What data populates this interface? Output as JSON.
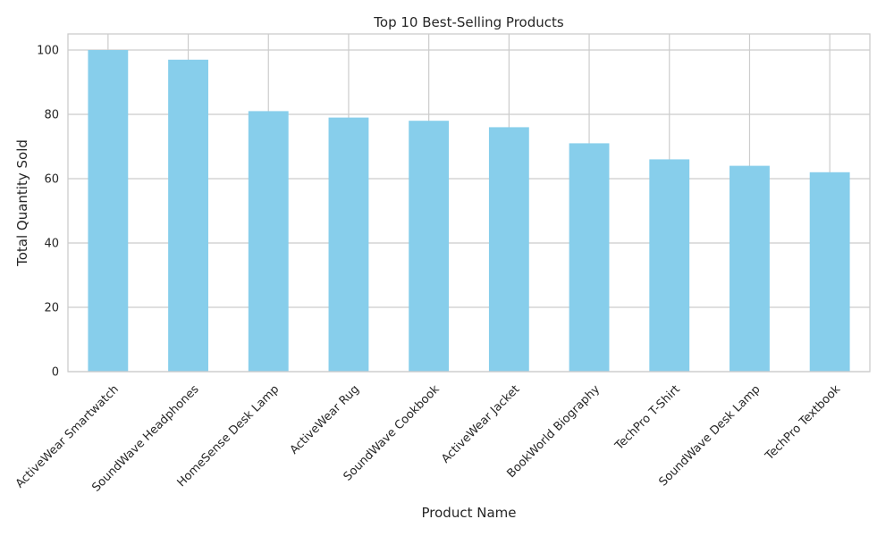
{
  "chart_data": {
    "type": "bar",
    "title": "Top 10 Best-Selling Products",
    "xlabel": "Product Name",
    "ylabel": "Total Quantity Sold",
    "categories": [
      "ActiveWear Smartwatch",
      "SoundWave Headphones",
      "HomeSense Desk Lamp",
      "ActiveWear Rug",
      "SoundWave Cookbook",
      "ActiveWear Jacket",
      "BookWorld Biography",
      "TechPro T-Shirt",
      "SoundWave Desk Lamp",
      "TechPro Textbook"
    ],
    "values": [
      100,
      97,
      81,
      79,
      78,
      76,
      71,
      66,
      64,
      62
    ],
    "ylim": [
      0,
      105
    ],
    "yticks": [
      "0",
      "20",
      "40",
      "60",
      "80",
      "100"
    ],
    "grid": true,
    "bar_color": "#87CEEB",
    "grid_color": "#cccccc",
    "background_color": "#ffffff"
  }
}
